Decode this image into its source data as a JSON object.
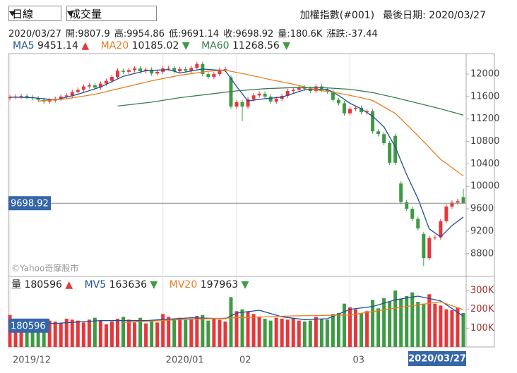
{
  "controls": {
    "period": "日線",
    "indicator": "成交量"
  },
  "header": {
    "stock": "加權指數(#001)",
    "last_date_label": "最後日期:",
    "last_date": "2020/03/27",
    "date": "2020/03/27",
    "open_label": "開:",
    "high_label": "高:",
    "low_label": "低:",
    "close_label": "收:",
    "volume_label": "量:",
    "volume": "180.6K",
    "change_label": "漲跌:",
    "change": -37.44
  },
  "watermark": "©Yahoo奇摩股市",
  "chart_data": [
    {
      "type": "candlestick",
      "open": [
        11570,
        11590,
        11600,
        11610,
        11590,
        11570,
        11540,
        11510,
        11530,
        11560,
        11600,
        11620,
        11680,
        11720,
        11780,
        11800,
        11760,
        11830,
        11880,
        11950,
        12060,
        12040,
        12070,
        12100,
        12050,
        12080,
        12010,
        12040,
        12100,
        12110,
        12050,
        12090,
        12060,
        12110,
        12180,
        12000,
        11950,
        12000,
        12080,
        11940,
        11420,
        11500,
        11420,
        11550,
        11620,
        11650,
        11600,
        11510,
        11560,
        11610,
        11700,
        11720,
        11760,
        11740,
        11700,
        11780,
        11720,
        11690,
        11540,
        11480,
        11300,
        11380,
        11400,
        11320,
        11340,
        10980,
        10930,
        10770,
        10900,
        10050,
        9720,
        9600,
        9420,
        9150,
        8720,
        9080,
        9090,
        9380,
        9640,
        9710,
        9807.9
      ],
      "high": [
        11630,
        11640,
        11650,
        11650,
        11630,
        11610,
        11580,
        11570,
        11600,
        11640,
        11660,
        11720,
        11760,
        11820,
        11840,
        11840,
        11870,
        11920,
        11990,
        12100,
        12100,
        12110,
        12140,
        12140,
        12120,
        12120,
        12080,
        12140,
        12150,
        12150,
        12130,
        12130,
        12150,
        12220,
        12220,
        12040,
        12040,
        12120,
        12130,
        11980,
        11540,
        11540,
        11590,
        11660,
        11690,
        11690,
        11640,
        11600,
        11650,
        11740,
        11760,
        11800,
        11800,
        11780,
        11820,
        11820,
        11760,
        11730,
        11580,
        11520,
        11420,
        11440,
        11440,
        11380,
        11380,
        11020,
        10970,
        10810,
        10940,
        10090,
        9760,
        9640,
        9460,
        9190,
        9120,
        9130,
        9420,
        9680,
        9750,
        9780,
        9954.86
      ],
      "low": [
        11530,
        11550,
        11560,
        11550,
        11530,
        11500,
        11470,
        11470,
        11490,
        11520,
        11560,
        11580,
        11640,
        11680,
        11740,
        11720,
        11720,
        11790,
        11840,
        11910,
        12000,
        12000,
        12030,
        12010,
        12010,
        11970,
        11970,
        12000,
        12060,
        12010,
        12010,
        12020,
        12020,
        12070,
        11960,
        11910,
        11910,
        11960,
        12040,
        11380,
        11380,
        11160,
        11380,
        11510,
        11580,
        11560,
        11470,
        11470,
        11520,
        11570,
        11660,
        11680,
        11700,
        11660,
        11660,
        11680,
        11650,
        11500,
        11440,
        11260,
        11260,
        11340,
        11280,
        11280,
        10940,
        10890,
        10730,
        10380,
        10380,
        9680,
        9560,
        9380,
        9210,
        8580,
        8680,
        9040,
        9050,
        9340,
        9600,
        9670,
        9691.14
      ],
      "close": [
        11590,
        11600,
        11610,
        11590,
        11570,
        11540,
        11510,
        11530,
        11560,
        11600,
        11620,
        11680,
        11720,
        11780,
        11800,
        11760,
        11830,
        11880,
        11950,
        12060,
        12040,
        12070,
        12100,
        12050,
        12080,
        12010,
        12040,
        12100,
        12110,
        12050,
        12090,
        12060,
        12110,
        12180,
        12000,
        11950,
        12000,
        12080,
        12090,
        11420,
        11500,
        11420,
        11550,
        11620,
        11650,
        11600,
        11510,
        11560,
        11610,
        11700,
        11720,
        11760,
        11740,
        11700,
        11780,
        11720,
        11690,
        11540,
        11480,
        11300,
        11380,
        11400,
        11320,
        11340,
        10980,
        10930,
        10770,
        10420,
        10420,
        9720,
        9600,
        9420,
        9250,
        8720,
        9080,
        9090,
        9380,
        9640,
        9710,
        9736.36,
        9698.92
      ],
      "up_color": "#e5383b",
      "down_color": "#3f9a45",
      "xlim": [
        -0.25,
        80.5
      ],
      "xticks": [
        {
          "value": 0,
          "label": "2019/12"
        },
        {
          "value": 27,
          "label": "2020/01"
        },
        {
          "value": 40,
          "label": "02"
        },
        {
          "value": 60,
          "label": "03"
        }
      ],
      "ylim": [
        8420,
        12340
      ],
      "yticks": [
        8800,
        9200,
        9600,
        10000,
        10400,
        10800,
        11200,
        11600,
        12000
      ],
      "series": [
        {
          "name": "MA5",
          "color": "#1f4e96",
          "arrow": "▲",
          "arrow_color": "#e5383b",
          "x": [
            0,
            4,
            8,
            12,
            16,
            20,
            24,
            28,
            30,
            34,
            38,
            40,
            42,
            44,
            48,
            52,
            56,
            58,
            60,
            62,
            64,
            66,
            68,
            70,
            72,
            74,
            76,
            78,
            80
          ],
          "values": [
            11590,
            11580,
            11540,
            11640,
            11770,
            11960,
            12060,
            12080,
            12020,
            12090,
            12060,
            11780,
            11520,
            11550,
            11590,
            11720,
            11730,
            11620,
            11480,
            11380,
            11250,
            11060,
            10700,
            10210,
            9780,
            9240,
            9100,
            9300,
            9451.14
          ]
        },
        {
          "name": "MA20",
          "color": "#e67e22",
          "arrow": "▼",
          "arrow_color": "#3f9a45",
          "x": [
            5,
            10,
            15,
            20,
            25,
            30,
            35,
            38,
            42,
            46,
            50,
            54,
            58,
            62,
            64,
            68,
            72,
            76,
            80
          ],
          "values": [
            11520,
            11560,
            11640,
            11760,
            11880,
            11980,
            12050,
            12070,
            11990,
            11900,
            11820,
            11720,
            11660,
            11580,
            11530,
            11300,
            10900,
            10480,
            10185.02
          ]
        },
        {
          "name": "MA60",
          "color": "#3a7d4a",
          "arrow": "▼",
          "arrow_color": "#3f9a45",
          "x": [
            19,
            25,
            30,
            35,
            40,
            45,
            50,
            55,
            60,
            64,
            68,
            72,
            76,
            80
          ],
          "values": [
            11430,
            11500,
            11580,
            11640,
            11700,
            11740,
            11760,
            11760,
            11730,
            11670,
            11580,
            11480,
            11380,
            11268.56
          ]
        }
      ]
    },
    {
      "type": "bar",
      "label": "量",
      "arrow": "▲",
      "arrow_color": "#e5383b",
      "up_color": "#e5383b",
      "down_color": "#3f9a45",
      "values": [
        170000,
        120000,
        110000,
        125000,
        130000,
        115000,
        120000,
        140000,
        135000,
        125000,
        150000,
        145000,
        140000,
        130000,
        145000,
        155000,
        140000,
        120000,
        135000,
        150000,
        160000,
        145000,
        130000,
        155000,
        125000,
        140000,
        130000,
        175000,
        160000,
        150000,
        155000,
        145000,
        150000,
        165000,
        170000,
        140000,
        150000,
        145000,
        135000,
        265000,
        190000,
        200000,
        190000,
        175000,
        160000,
        150000,
        140000,
        155000,
        150000,
        145000,
        150000,
        140000,
        135000,
        140000,
        160000,
        150000,
        145000,
        175000,
        180000,
        230000,
        210000,
        200000,
        180000,
        190000,
        250000,
        205000,
        260000,
        240000,
        300000,
        255000,
        270000,
        290000,
        240000,
        230000,
        280000,
        230000,
        220000,
        200000,
        195000,
        210000,
        180596
      ],
      "ylim": [
        0,
        375000
      ],
      "yticks": [
        {
          "value": 100000,
          "label": "100K"
        },
        {
          "value": 200000,
          "label": "200K"
        },
        {
          "value": 300000,
          "label": "300K"
        }
      ],
      "series": [
        {
          "name": "MV5",
          "color": "#1f4e96",
          "arrow": "▼",
          "arrow_color": "#3f9a45",
          "x": [
            0,
            8,
            16,
            24,
            32,
            38,
            40,
            44,
            48,
            52,
            56,
            60,
            64,
            68,
            72,
            76,
            80
          ],
          "values": [
            130000,
            125000,
            140000,
            140000,
            155000,
            150000,
            180000,
            195000,
            160000,
            145000,
            150000,
            200000,
            215000,
            250000,
            270000,
            245000,
            163636
          ]
        },
        {
          "name": "MV20",
          "color": "#e67e22",
          "arrow": "▼",
          "arrow_color": "#3f9a45",
          "x": [
            20,
            30,
            40,
            50,
            60,
            70,
            76,
            80
          ],
          "values": [
            130000,
            145000,
            155000,
            165000,
            170000,
            215000,
            240000,
            197963
          ]
        }
      ]
    }
  ]
}
